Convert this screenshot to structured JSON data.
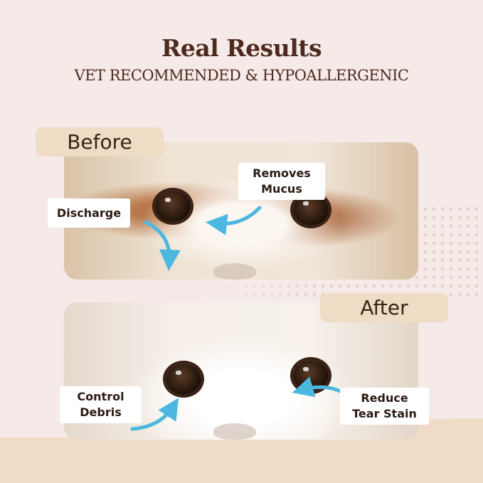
{
  "header": {
    "title": "Real Results",
    "subtitle": "VET RECOMMENDED & HYPOALLERGENIC"
  },
  "before": {
    "tab": "Before",
    "labels": [
      {
        "text": "Discharge"
      },
      {
        "line1": "Removes",
        "line2": "Mucus"
      }
    ]
  },
  "after": {
    "tab": "After",
    "labels": [
      {
        "line1": "Control",
        "line2": "Debris"
      },
      {
        "line1": "Reduce",
        "line2": "Tear Stain"
      }
    ]
  },
  "colors": {
    "title": "#4e2a1e",
    "tab": "#eedcc4",
    "arrow": "#4cb8df",
    "background": "#f5eae8"
  }
}
